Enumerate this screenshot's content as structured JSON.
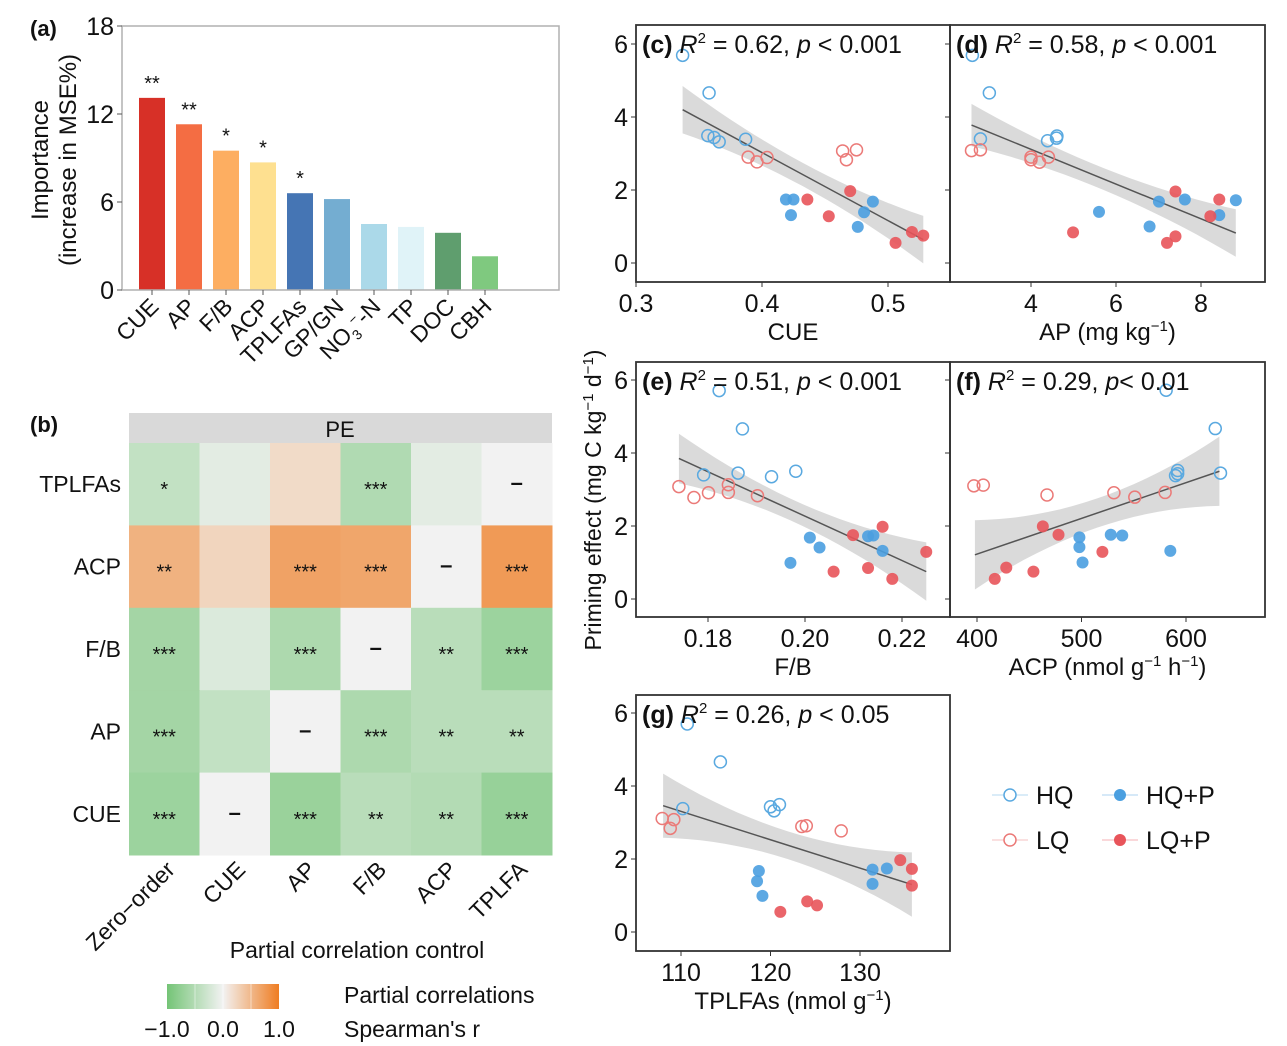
{
  "chart_data": [
    {
      "panel": "(a)",
      "type": "bar",
      "ylabel_line1": "Importance",
      "ylabel_line2": "(increase in MSE%)",
      "ylim": [
        0,
        18
      ],
      "yticks": [
        "0",
        "6",
        "12",
        "18"
      ],
      "categories": [
        "CUE",
        "AP",
        "F/B",
        "ACP",
        "TPLFAs",
        "GP/GN",
        "NO3--N",
        "TP",
        "DOC",
        "CBH"
      ],
      "category_labels": [
        "CUE",
        "AP",
        "F/B",
        "ACP",
        "TPLFAs",
        "GP/GN",
        "NO",
        "TP",
        "DOC",
        "CBH"
      ],
      "no3_sub": "3",
      "no3_sup": "−",
      "no3_tail": "-N",
      "values": [
        13.1,
        11.3,
        9.5,
        8.7,
        6.6,
        6.2,
        4.5,
        4.3,
        3.9,
        2.3
      ],
      "significance": [
        "**",
        "**",
        "*",
        "*",
        "*",
        "",
        "",
        "",
        "",
        ""
      ],
      "colors": [
        "#d73027",
        "#f46d43",
        "#fdae61",
        "#fee090",
        "#4575b4",
        "#74add1",
        "#abd9e9",
        "#e0f3f8",
        "#5f9e6e",
        "#7fc97f"
      ]
    },
    {
      "panel": "(b)",
      "type": "heatmap",
      "strip_label": "PE",
      "rows": [
        "TPLFAs",
        "ACP",
        "F/B",
        "AP",
        "CUE"
      ],
      "columns": [
        "Zero−order",
        "CUE",
        "AP",
        "F/B",
        "ACP",
        "TPLFA"
      ],
      "xlabel": "Partial correlation control",
      "values": [
        [
          -0.38,
          -0.12,
          0.2,
          -0.52,
          -0.12,
          null
        ],
        [
          0.55,
          0.25,
          0.68,
          0.65,
          null,
          0.75
        ],
        [
          -0.62,
          -0.18,
          -0.55,
          null,
          -0.45,
          -0.68
        ],
        [
          -0.62,
          -0.38,
          null,
          -0.55,
          -0.45,
          -0.45
        ],
        [
          -0.68,
          null,
          -0.7,
          -0.45,
          -0.5,
          -0.72
        ]
      ],
      "annotations": [
        [
          "*",
          "",
          "",
          "***",
          "",
          "–"
        ],
        [
          "**",
          "",
          "***",
          "***",
          "–",
          "***"
        ],
        [
          "***",
          "",
          "***",
          "–",
          "**",
          "***"
        ],
        [
          "***",
          "",
          "–",
          "***",
          "**",
          "**"
        ],
        [
          "***",
          "–",
          "***",
          "**",
          "**",
          "***"
        ]
      ],
      "colorbar": {
        "title_line1": "Partial correlations",
        "title_line2": "Spearman's r",
        "ticks": [
          "−1.0",
          "0.0",
          "1.0"
        ],
        "range": [
          -1,
          1
        ],
        "low_color": "#74c476",
        "mid_color": "#f2f2f2",
        "high_color": "#ef7d22"
      }
    },
    {
      "panel": "(c)",
      "type": "scatter",
      "label": "(c)",
      "stat_r2": "R",
      "stat_r2_value": " = 0.62, ",
      "stat_p": "p",
      "stat_p_value": " < 0.001",
      "xlabel": "CUE",
      "xlim": [
        0.3,
        0.55
      ],
      "xticks": [
        0.3,
        0.4,
        0.5
      ],
      "xtick_labels": [
        "0.3",
        "0.4",
        "0.5"
      ],
      "ylim": [
        -0.45,
        6.5
      ],
      "yticks": [
        0,
        2,
        4,
        6
      ],
      "ytick_labels": [
        "0",
        "2",
        "4",
        "6"
      ],
      "series": [
        {
          "name": "HQ",
          "x": [
            0.337,
            0.358,
            0.357,
            0.362,
            0.366,
            0.387
          ],
          "y": [
            5.69,
            4.66,
            3.49,
            3.44,
            3.32,
            3.39
          ]
        },
        {
          "name": "LQ",
          "x": [
            0.389,
            0.396,
            0.404,
            0.464,
            0.467,
            0.475
          ],
          "y": [
            2.9,
            2.77,
            2.89,
            3.07,
            2.83,
            3.1
          ]
        },
        {
          "name": "HQ+P",
          "x": [
            0.419,
            0.425,
            0.423,
            0.476,
            0.481,
            0.488
          ],
          "y": [
            1.74,
            1.74,
            1.31,
            0.99,
            1.39,
            1.68
          ]
        },
        {
          "name": "LQ+P",
          "x": [
            0.436,
            0.453,
            0.47,
            0.506,
            0.519,
            0.528
          ],
          "y": [
            1.74,
            1.28,
            1.97,
            0.55,
            0.85,
            0.75
          ]
        }
      ],
      "fit": {
        "x": [
          0.337,
          0.528
        ],
        "y": [
          4.2,
          0.64
        ]
      },
      "ci_halfwidth": [
        0.65,
        0.32,
        0.65
      ]
    },
    {
      "panel": "(d)",
      "type": "scatter",
      "label": "(d)",
      "stat_r2": "R",
      "stat_r2_value": " = 0.58, ",
      "stat_p": "p",
      "stat_p_value": " < 0.001",
      "xlabel": "AP (mg kg",
      "xlabel_sup": "−1",
      "xlabel_tail": ")",
      "xlim": [
        2.1,
        9.5
      ],
      "xticks": [
        4,
        6,
        8
      ],
      "xtick_labels": [
        "4",
        "6",
        "8"
      ],
      "ylim": [
        -0.45,
        6.5
      ],
      "yticks": [
        0,
        2,
        4,
        6
      ],
      "series": [
        {
          "name": "HQ",
          "x": [
            2.62,
            3.02,
            2.81,
            4.39,
            4.61,
            4.6
          ],
          "y": [
            5.69,
            4.66,
            3.4,
            3.35,
            3.48,
            3.42
          ]
        },
        {
          "name": "LQ",
          "x": [
            2.6,
            2.81,
            4.0,
            4.0,
            4.2,
            4.41
          ],
          "y": [
            3.08,
            3.1,
            2.9,
            2.83,
            2.76,
            2.9
          ]
        },
        {
          "name": "HQ+P",
          "x": [
            5.6,
            6.79,
            7.01,
            7.62,
            8.43,
            8.82
          ],
          "y": [
            1.4,
            1.0,
            1.68,
            1.74,
            1.31,
            1.72
          ]
        },
        {
          "name": "LQ+P",
          "x": [
            4.99,
            7.2,
            7.4,
            7.4,
            8.22,
            8.43
          ],
          "y": [
            0.84,
            0.55,
            0.73,
            1.96,
            1.28,
            1.74
          ]
        }
      ],
      "fit": {
        "x": [
          2.6,
          8.82
        ],
        "y": [
          3.78,
          0.82
        ]
      },
      "ci_halfwidth": [
        0.58,
        0.3,
        0.65
      ]
    },
    {
      "panel": "(e)",
      "type": "scatter",
      "label": "(e)",
      "stat_r2": "R",
      "stat_r2_value": " = 0.51, ",
      "stat_p": "p",
      "stat_p_value": " < 0.001",
      "xlabel": "F/B",
      "xlim": [
        0.1686,
        0.2332
      ],
      "xticks": [
        0.18,
        0.2,
        0.22
      ],
      "xtick_labels": [
        "0.18",
        "0.20",
        "0.22"
      ],
      "ylim": [
        -0.45,
        6.5
      ],
      "yticks": [
        0,
        2,
        4,
        6
      ],
      "series": [
        {
          "name": "HQ",
          "x": [
            0.1823,
            0.1871,
            0.1791,
            0.1862,
            0.1931,
            0.1981
          ],
          "y": [
            5.71,
            4.66,
            3.4,
            3.45,
            3.35,
            3.5
          ]
        },
        {
          "name": "LQ",
          "x": [
            0.174,
            0.1771,
            0.1801,
            0.1842,
            0.1842,
            0.1902
          ],
          "y": [
            3.08,
            2.78,
            2.91,
            3.13,
            2.92,
            2.83
          ]
        },
        {
          "name": "HQ+P",
          "x": [
            0.197,
            0.201,
            0.203,
            0.213,
            0.2141,
            0.216
          ],
          "y": [
            0.99,
            1.68,
            1.41,
            1.72,
            1.74,
            1.32
          ]
        },
        {
          "name": "LQ+P",
          "x": [
            0.2059,
            0.2099,
            0.213,
            0.216,
            0.218,
            0.225
          ],
          "y": [
            0.75,
            1.75,
            0.85,
            1.98,
            0.55,
            1.29
          ]
        }
      ],
      "fit": {
        "x": [
          0.174,
          0.225
        ],
        "y": [
          3.85,
          0.75
        ]
      },
      "ci_halfwidth": [
        0.68,
        0.3,
        0.8
      ]
    },
    {
      "panel": "(f)",
      "type": "scatter",
      "label": "(f)",
      "stat_r2": "R",
      "stat_r2_value": " = 0.29, ",
      "stat_p": "p",
      "stat_p_value": "< 0.01",
      "xlabel": "ACP (nmol g",
      "xlabel_sup": "−1",
      "xlabel_mid": " h",
      "xlabel_sup2": "−1",
      "xlabel_tail": ")",
      "xlim": [
        368,
        670
      ],
      "xticks": [
        400,
        500,
        600
      ],
      "xtick_labels": [
        "400",
        "500",
        "600"
      ],
      "ylim": [
        -0.45,
        6.5
      ],
      "yticks": [
        0,
        2,
        4,
        6
      ],
      "series": [
        {
          "name": "HQ",
          "x": [
            581,
            628,
            633,
            592,
            590,
            592
          ],
          "y": [
            5.72,
            4.67,
            3.45,
            3.52,
            3.38,
            3.43
          ]
        },
        {
          "name": "LQ",
          "x": [
            397,
            406,
            467,
            531,
            551,
            580
          ],
          "y": [
            3.1,
            3.12,
            2.85,
            2.91,
            2.79,
            2.92
          ]
        },
        {
          "name": "HQ+P",
          "x": [
            498,
            498,
            501,
            528,
            539,
            585
          ],
          "y": [
            1.69,
            1.42,
            1.0,
            1.76,
            1.74,
            1.32
          ]
        },
        {
          "name": "LQ+P",
          "x": [
            417,
            428,
            454,
            463,
            478,
            520
          ],
          "y": [
            0.55,
            0.86,
            0.75,
            1.99,
            1.76,
            1.29
          ]
        }
      ],
      "fit": {
        "x": [
          398,
          632
        ],
        "y": [
          1.21,
          3.5
        ]
      },
      "ci_halfwidth": [
        0.95,
        0.4,
        0.95
      ]
    },
    {
      "panel": "(g)",
      "type": "scatter",
      "label": "(g)",
      "stat_r2": "R",
      "stat_r2_value": " = 0.26, ",
      "stat_p": "p",
      "stat_p_value": " < 0.05",
      "xlabel": "TPLFAs (nmol g",
      "xlabel_sup": "−1",
      "xlabel_tail": ")",
      "xlim": [
        104.9,
        139.9
      ],
      "xticks": [
        110,
        120,
        130
      ],
      "xtick_labels": [
        "110",
        "120",
        "130"
      ],
      "ylim": [
        -0.45,
        6.5
      ],
      "yticks": [
        0,
        2,
        4,
        6
      ],
      "series": [
        {
          "name": "HQ",
          "x": [
            110.7,
            114.4,
            110.2,
            120.0,
            120.4,
            121.0
          ],
          "y": [
            5.7,
            4.66,
            3.38,
            3.43,
            3.32,
            3.49
          ]
        },
        {
          "name": "LQ",
          "x": [
            107.9,
            109.2,
            108.8,
            123.5,
            124.0,
            127.9
          ],
          "y": [
            3.11,
            3.08,
            2.84,
            2.89,
            2.91,
            2.77
          ]
        },
        {
          "name": "HQ+P",
          "x": [
            118.7,
            118.5,
            119.1,
            131.4,
            131.4,
            133.0
          ],
          "y": [
            1.67,
            1.39,
            0.99,
            1.71,
            1.32,
            1.74
          ]
        },
        {
          "name": "LQ+P",
          "x": [
            121.1,
            124.1,
            125.2,
            134.5,
            135.8,
            135.8
          ],
          "y": [
            0.55,
            0.84,
            0.73,
            1.97,
            1.73,
            1.27
          ]
        }
      ],
      "fit": {
        "x": [
          108.0,
          135.8
        ],
        "y": [
          3.46,
          1.3
        ]
      },
      "ci_halfwidth": [
        0.88,
        0.38,
        0.88
      ]
    }
  ],
  "shared": {
    "ylabel": "Priming effect (mg C kg",
    "ylabel_sup1": "−1",
    "ylabel_mid": " d",
    "ylabel_sup2": "−1",
    "ylabel_tail": ")"
  },
  "legend": {
    "items": [
      {
        "name": "HQ",
        "filled": false,
        "color": "#5aa9e0"
      },
      {
        "name": "HQ+P",
        "filled": true,
        "color": "#4a9fe0"
      },
      {
        "name": "LQ",
        "filled": false,
        "color": "#eb7a78"
      },
      {
        "name": "LQ+P",
        "filled": true,
        "color": "#e8545a"
      }
    ]
  },
  "colors": {
    "hq": "#5aa9e0",
    "hqp": "#4a9fe0",
    "lq": "#eb7a78",
    "lqp": "#e8545a",
    "fit_line": "#555555",
    "ci_band": "#d3d3d3",
    "strip": "#d9d9d9",
    "frame": "#333333",
    "bar_frame": "#b0b0b0"
  }
}
